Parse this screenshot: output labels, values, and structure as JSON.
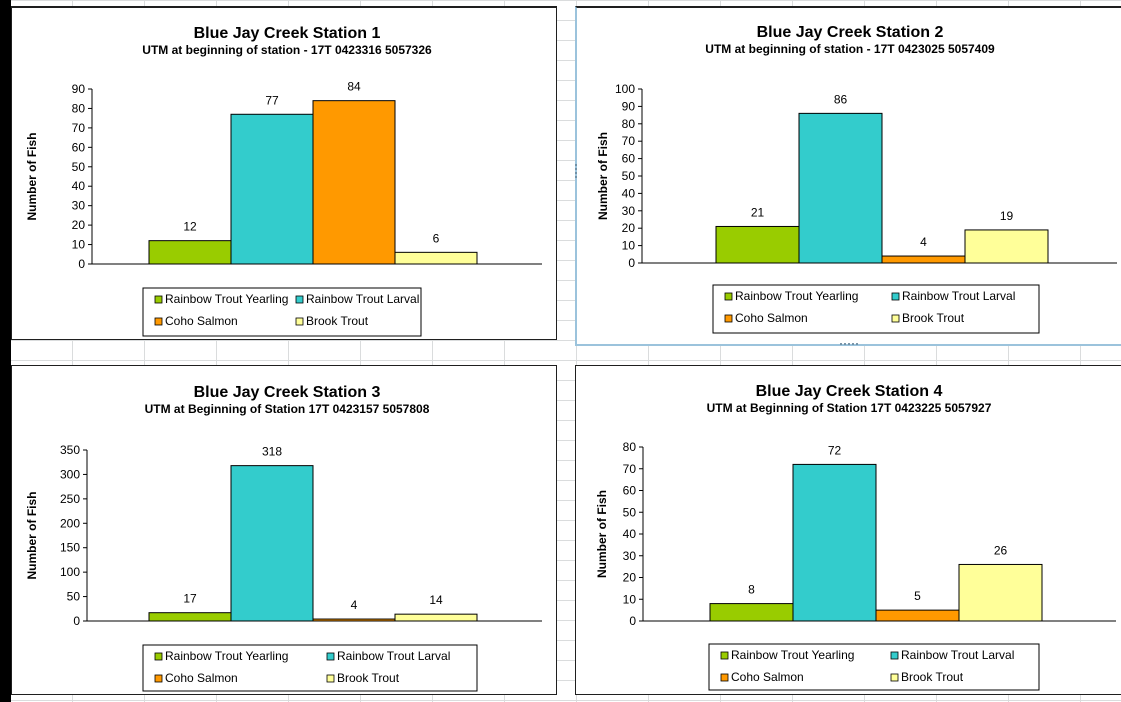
{
  "ylabel": "Number of Fish",
  "legend": [
    {
      "name": "Rainbow Trout Yearling",
      "color": "#99cc00"
    },
    {
      "name": "Rainbow Trout Larval",
      "color": "#33cccc"
    },
    {
      "name": "Coho Salmon",
      "color": "#ff9900"
    },
    {
      "name": "Brook Trout",
      "color": "#ffff99"
    }
  ],
  "chart_data": [
    {
      "type": "bar",
      "title": "Blue Jay Creek Station 1",
      "subtitle": "UTM at beginning of station - 17T  0423316  5057326",
      "ylabel": "Number of Fish",
      "categories": [
        "Rainbow Trout Yearling",
        "Rainbow Trout Larval",
        "Coho Salmon",
        "Brook Trout"
      ],
      "values": [
        12,
        77,
        84,
        6
      ],
      "ylim": [
        0,
        90
      ],
      "yticks": [
        0,
        10,
        20,
        30,
        40,
        50,
        60,
        70,
        80,
        90
      ],
      "legend_position": "bottom"
    },
    {
      "type": "bar",
      "title": "Blue Jay Creek Station 2",
      "subtitle": "UTM at beginning of station - 17T  0423025  5057409",
      "ylabel": "Number of Fish",
      "categories": [
        "Rainbow Trout Yearling",
        "Rainbow Trout Larval",
        "Coho Salmon",
        "Brook Trout"
      ],
      "values": [
        21,
        86,
        4,
        19
      ],
      "ylim": [
        0,
        100
      ],
      "yticks": [
        0,
        10,
        20,
        30,
        40,
        50,
        60,
        70,
        80,
        90,
        100
      ],
      "legend_position": "bottom"
    },
    {
      "type": "bar",
      "title": "Blue Jay Creek Station 3",
      "subtitle": "UTM at Beginning of Station 17T  0423157  5057808",
      "ylabel": "Number of Fish",
      "categories": [
        "Rainbow Trout Yearling",
        "Rainbow Trout Larval",
        "Coho Salmon",
        "Brook Trout"
      ],
      "values": [
        17,
        318,
        4,
        14
      ],
      "ylim": [
        0,
        350
      ],
      "yticks": [
        0,
        50,
        100,
        150,
        200,
        250,
        300,
        350
      ],
      "legend_position": "bottom"
    },
    {
      "type": "bar",
      "title": "Blue Jay Creek Station 4",
      "subtitle": "UTM at Beginning of Station 17T  0423225  5057927",
      "ylabel": "Number of Fish",
      "categories": [
        "Rainbow Trout Yearling",
        "Rainbow Trout Larval",
        "Coho Salmon",
        "Brook Trout"
      ],
      "values": [
        8,
        72,
        5,
        26
      ],
      "ylim": [
        0,
        80
      ],
      "yticks": [
        0,
        10,
        20,
        30,
        40,
        50,
        60,
        70,
        80
      ],
      "legend_position": "bottom"
    }
  ]
}
